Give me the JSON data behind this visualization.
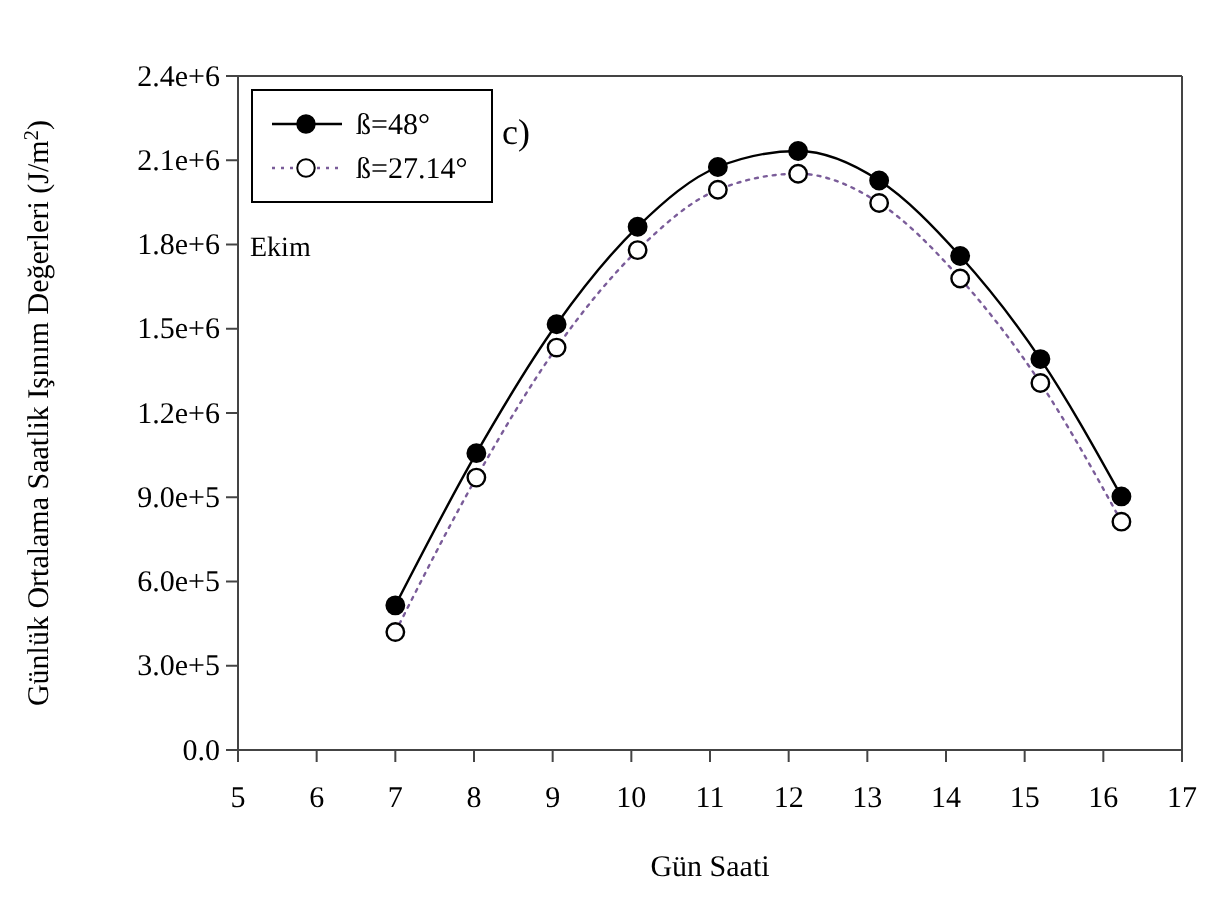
{
  "chart_data": {
    "type": "line",
    "xlabel": "Gün Saati",
    "ylabel": "Günlük Ortalama Saatlik Işınım Değerleri (J/m$^{2}$)",
    "annotations": [
      "c)",
      "Ekim"
    ],
    "x": [
      7,
      8.03,
      9.05,
      10.08,
      11.1,
      12.12,
      13.15,
      14.18,
      15.2,
      16.23
    ],
    "series": [
      {
        "name": "ß=48°",
        "color": "#000000",
        "line_style": "solid",
        "values": [
          515000,
          1057000,
          1516000,
          1863000,
          2076000,
          2133000,
          2028000,
          1759000,
          1392000,
          903000
        ]
      },
      {
        "name": "ß=27.14°",
        "color": "#7a5c99",
        "line_style": "dotted",
        "values": [
          420000,
          970000,
          1433000,
          1780000,
          1995000,
          2052000,
          1948000,
          1679000,
          1307000,
          813000
        ]
      }
    ],
    "xlim": [
      5,
      17
    ],
    "xticks": [
      5,
      6,
      7,
      8,
      9,
      10,
      11,
      12,
      13,
      14,
      15,
      16,
      17
    ],
    "ylim": [
      0,
      2400000
    ],
    "yticks": [
      {
        "value": 0,
        "label": "0.0"
      },
      {
        "value": 300000,
        "label": "3.0e+5"
      },
      {
        "value": 600000,
        "label": "6.0e+5"
      },
      {
        "value": 900000,
        "label": "9.0e+5"
      },
      {
        "value": 1200000,
        "label": "1.2e+6"
      },
      {
        "value": 1500000,
        "label": "1.5e+6"
      },
      {
        "value": 1800000,
        "label": "1.8e+6"
      },
      {
        "value": 2100000,
        "label": "2.1e+6"
      },
      {
        "value": 2400000,
        "label": "2.4e+6"
      }
    ],
    "marker": "circle",
    "legend": "top left",
    "grid": false
  }
}
